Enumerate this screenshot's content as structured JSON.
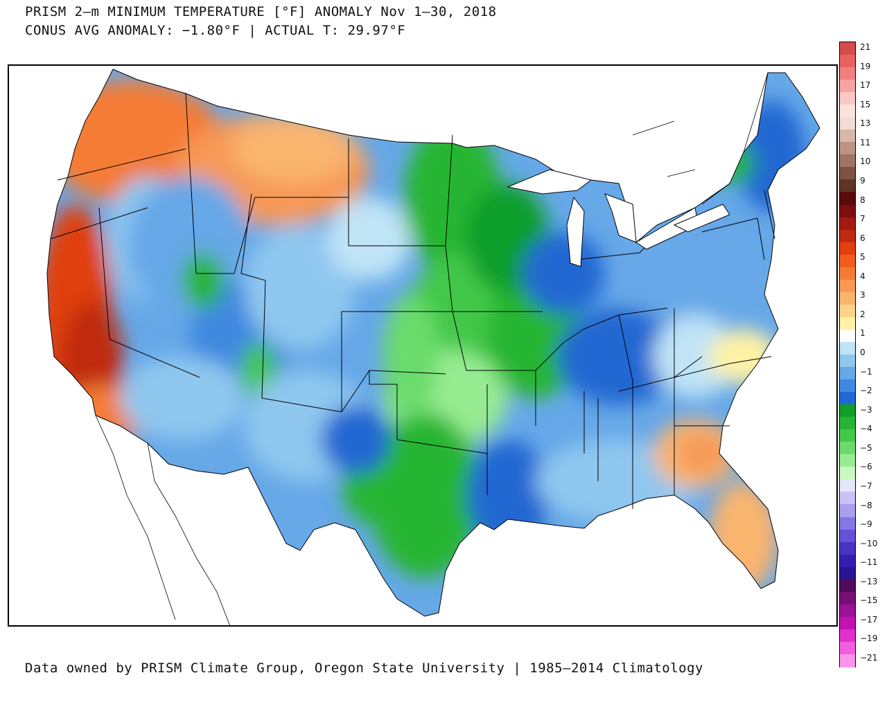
{
  "title": {
    "line1": "PRISM 2–m MINIMUM TEMPERATURE [°F] ANOMALY Nov 1–30, 2018",
    "line2": "CONUS AVG ANOMALY: −1.80°F | ACTUAL T: 29.97°F"
  },
  "footer": "Data owned by PRISM Climate Group, Oregon State University | 1985–2014 Climatology",
  "legend": {
    "labels": [
      "21",
      "19",
      "17",
      "15",
      "13",
      "11",
      "10",
      "9",
      "8",
      "7",
      "6",
      "5",
      "4",
      "3",
      "2",
      "1",
      "0",
      "−1",
      "−2",
      "−3",
      "−4",
      "−5",
      "−6",
      "−7",
      "−8",
      "−9",
      "−10",
      "−11",
      "−13",
      "−15",
      "−17",
      "−19",
      "−21"
    ],
    "colors": [
      "#d64b4b",
      "#e8605f",
      "#ef7f80",
      "#f6a3a3",
      "#fbc7c5",
      "#fde3dd",
      "#f2ddd4",
      "#d8b6a8",
      "#bb9484",
      "#9f7462",
      "#7f5342",
      "#5f3424",
      "#5a0a0a",
      "#7e0e0e",
      "#a01a10",
      "#c02a10",
      "#e0400c",
      "#f25d1e",
      "#f47b36",
      "#f79856",
      "#f9b46e",
      "#fbd48a",
      "#fff2a6",
      "#ffffff",
      "#bfe4f6",
      "#8fc7ef",
      "#66a8e8",
      "#4089e0",
      "#2267d2",
      "#0f9e2a",
      "#26b532",
      "#43c84a",
      "#6bdc6c",
      "#97ec92",
      "#c8f7c0",
      "#e6e6fb",
      "#c7c4f5",
      "#a6a0ee",
      "#8478e3",
      "#6453d4",
      "#4833c2",
      "#3420ae",
      "#2a1490",
      "#520a5c",
      "#780f76",
      "#9c1294",
      "#c210b2",
      "#e030cc",
      "#f060de",
      "#f896ec"
    ]
  },
  "map": {
    "region": "CONUS",
    "cells": [
      {
        "area": "pacific-coast",
        "anomaly": 3
      },
      {
        "area": "california-central",
        "anomaly": 7
      },
      {
        "area": "great-basin",
        "anomaly": -2
      },
      {
        "area": "northern-rockies",
        "anomaly": 2
      },
      {
        "area": "central-rockies",
        "anomaly": -2
      },
      {
        "area": "southwest",
        "anomaly": -2
      },
      {
        "area": "great-plains",
        "anomaly": -5
      },
      {
        "area": "upper-midwest",
        "anomaly": -5
      },
      {
        "area": "texas",
        "anomaly": -4
      },
      {
        "area": "lower-mississippi",
        "anomaly": -3
      },
      {
        "area": "great-lakes",
        "anomaly": -3
      },
      {
        "area": "ohio-valley",
        "anomaly": -2
      },
      {
        "area": "northeast",
        "anomaly": -3
      },
      {
        "area": "southeast",
        "anomaly": -2
      },
      {
        "area": "carolinas-coast",
        "anomaly": 1
      },
      {
        "area": "florida-georgia",
        "anomaly": 2
      }
    ]
  }
}
